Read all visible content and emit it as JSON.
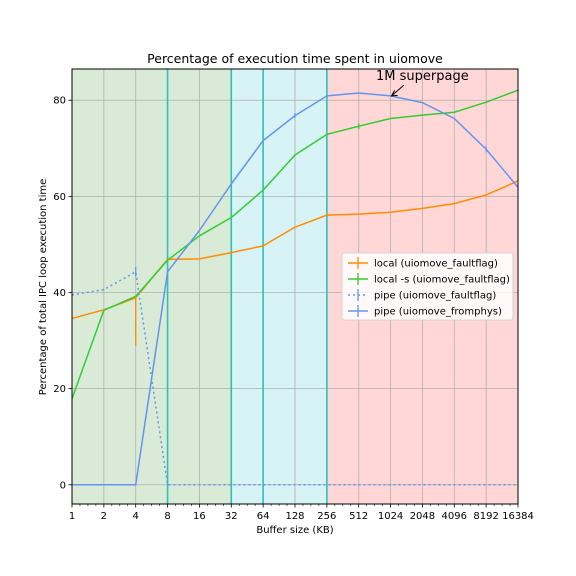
{
  "chart_data": {
    "type": "line",
    "title": "Percentage of execution time spent in uiomove",
    "xlabel": "Buffer size (KB)",
    "ylabel": "Percentage of total IPC loop execution time",
    "x_scale": "log2",
    "x_ticks": [
      1,
      2,
      4,
      8,
      16,
      32,
      64,
      128,
      256,
      512,
      1024,
      2048,
      4096,
      8192,
      16384
    ],
    "x_tick_labels": [
      "1",
      "2",
      "4",
      "8",
      "16",
      "32",
      "64",
      "128",
      "256",
      "512",
      "1024",
      "2048",
      "4096",
      "8192",
      "16384"
    ],
    "y_ticks": [
      0,
      20,
      40,
      60,
      80
    ],
    "xlim": [
      1,
      16384
    ],
    "ylim": [
      -4,
      86.5
    ],
    "grid": true,
    "legend_position": "center-right",
    "regions": [
      {
        "from": 1,
        "to": 32,
        "color": "#d9ead7"
      },
      {
        "from": 32,
        "to": 256,
        "color": "#d8f3f5"
      },
      {
        "from": 256,
        "to": 16384,
        "color": "#ffd7d7"
      }
    ],
    "vertical_lines": [
      8,
      32,
      64,
      256
    ],
    "vertical_line_color": "#28c4bc",
    "annotation": {
      "text": "1M superpage",
      "target": [
        1024,
        80.8
      ]
    },
    "series": [
      {
        "name": "local (uiomove_faultflag)",
        "color": "#ff8c00",
        "dash": false,
        "x": [
          1,
          2,
          4,
          8,
          16,
          32,
          64,
          128,
          256,
          512,
          1024,
          2048,
          4096,
          8192,
          16384
        ],
        "y": [
          34.6,
          36.4,
          38.9,
          46.9,
          47.0,
          48.3,
          49.7,
          53.6,
          56.1,
          56.3,
          56.7,
          57.5,
          58.5,
          60.3,
          63.2
        ],
        "err_low": [
          0,
          0,
          10,
          0,
          0,
          0,
          0,
          0,
          0,
          0,
          0,
          0,
          0,
          0,
          0
        ],
        "err_high": [
          0,
          0,
          0,
          0,
          0,
          0,
          0,
          0,
          0,
          0,
          0,
          0,
          0,
          0,
          0
        ]
      },
      {
        "name": "local -s (uiomove_faultflag)",
        "color": "#32cd32",
        "dash": false,
        "x": [
          1,
          2,
          4,
          8,
          16,
          32,
          64,
          128,
          256,
          512,
          1024,
          2048,
          4096,
          8192,
          16384
        ],
        "y": [
          17.9,
          36.3,
          39.2,
          46.7,
          51.8,
          55.6,
          61.3,
          68.6,
          72.9,
          74.6,
          76.2,
          76.9,
          77.5,
          79.6,
          82.1
        ],
        "err_low": [
          0,
          0,
          0,
          0,
          0,
          0,
          0,
          0,
          0,
          0.6,
          0,
          0,
          0,
          0,
          0
        ],
        "err_high": [
          0,
          0,
          0,
          0,
          0,
          0,
          0,
          0,
          0,
          0.6,
          0,
          0,
          0,
          0,
          0
        ]
      },
      {
        "name": "pipe (uiomove_faultflag)",
        "color": "#6495ed",
        "dash": true,
        "x": [
          1,
          2,
          4,
          8,
          16,
          32,
          64,
          128,
          256,
          512,
          1024,
          2048,
          4096,
          8192,
          16384
        ],
        "y": [
          39.5,
          40.6,
          44.3,
          0,
          0,
          0,
          0,
          0,
          0,
          0,
          0,
          0,
          0,
          0,
          0
        ],
        "err_low": [
          0,
          0,
          1,
          0,
          0,
          0,
          0,
          0,
          0,
          0,
          0,
          0,
          0,
          0,
          0
        ],
        "err_high": [
          0,
          0,
          1,
          0,
          0,
          0,
          0,
          0,
          0,
          0,
          0,
          0,
          0,
          0,
          0
        ]
      },
      {
        "name": "pipe (uiomove_fromphys)",
        "color": "#6495ed",
        "dash": false,
        "x": [
          1,
          2,
          4,
          8,
          16,
          32,
          64,
          128,
          256,
          512,
          1024,
          2048,
          4096,
          8192,
          16384
        ],
        "y": [
          0,
          0,
          0,
          44.3,
          52.9,
          62.6,
          71.6,
          76.8,
          80.9,
          81.5,
          80.9,
          79.5,
          76.2,
          69.8,
          61.9
        ],
        "err_low": [
          0,
          0,
          0,
          0,
          0,
          0,
          0,
          0.5,
          0,
          0,
          0,
          0,
          0,
          0.6,
          0
        ],
        "err_high": [
          0,
          0,
          0,
          0,
          0,
          0,
          0,
          0.5,
          0,
          0,
          0,
          0,
          0,
          0.6,
          0
        ]
      }
    ]
  }
}
